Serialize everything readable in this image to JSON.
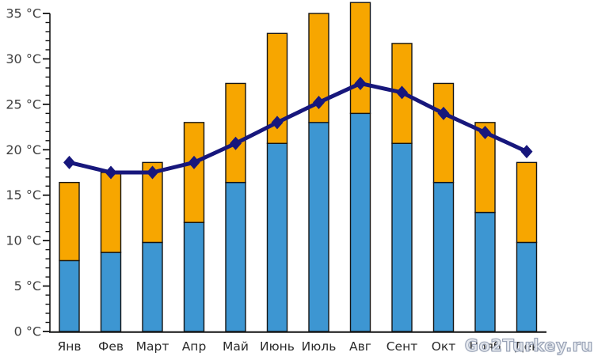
{
  "chart_data": {
    "type": "bar",
    "subtype": "stacked-bars-with-line-overlay",
    "title": "",
    "categories": [
      "Янв",
      "Фев",
      "Март",
      "Апр",
      "Май",
      "Июнь",
      "Июль",
      "Авг",
      "Сент",
      "Окт",
      "Нояб",
      "Дек"
    ],
    "series": [
      {
        "name": "day-temperature",
        "type": "bar",
        "segment": "top",
        "color": "#F7A600",
        "values": [
          16.4,
          17.5,
          18.6,
          23,
          27.3,
          32.8,
          35,
          36.2,
          31.7,
          27.3,
          23,
          18.6
        ]
      },
      {
        "name": "night-temperature",
        "type": "bar",
        "segment": "bottom",
        "color": "#3D96D2",
        "values": [
          7.8,
          8.7,
          9.8,
          12,
          16.4,
          20.7,
          23,
          24,
          20.7,
          16.4,
          13.1,
          9.8
        ]
      },
      {
        "name": "sea-temperature",
        "type": "line",
        "marker": "diamond",
        "color": "#17177C",
        "values": [
          18.6,
          17.5,
          17.5,
          18.6,
          20.7,
          23,
          25.2,
          27.3,
          26.3,
          24,
          21.9,
          19.8
        ]
      }
    ],
    "ylabel": "°C",
    "y_ticks": [
      0,
      5,
      10,
      15,
      20,
      25,
      30,
      35
    ],
    "y_tick_format": "{v} °C",
    "y_minor_tick_step": 1,
    "ylim": [
      0,
      36.6
    ],
    "grid": false,
    "legend": "none"
  },
  "watermark": {
    "text": "Go2Turkey.ru"
  },
  "colors": {
    "bar_day": "#F7A600",
    "bar_night": "#3D96D2",
    "line_sea": "#17177C",
    "bar_outline": "#141414",
    "axis": "#141414",
    "tick_label": "#3f3f3f",
    "month_label": "#2b2b2b",
    "background": "#FFFFFF"
  }
}
